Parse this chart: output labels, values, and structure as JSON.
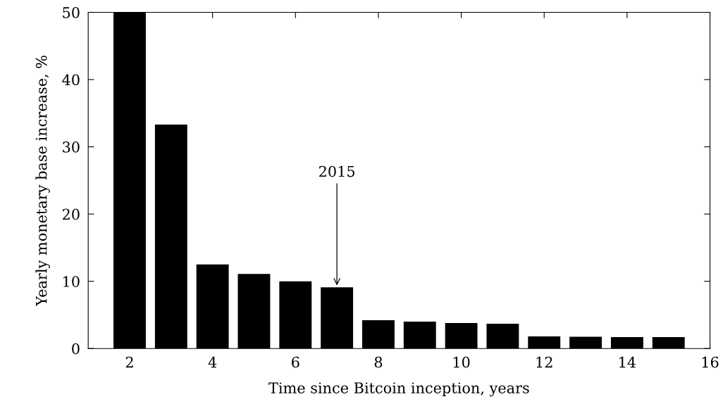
{
  "chart_data": {
    "type": "bar",
    "xlabel": "Time since Bitcoin inception, years",
    "ylabel": "Yearly monetary base increase, %",
    "x": [
      2,
      3,
      4,
      5,
      6,
      7,
      8,
      9,
      10,
      11,
      12,
      13,
      14,
      15
    ],
    "values": [
      50,
      33.3,
      12.5,
      11.1,
      10,
      9.1,
      4.2,
      4.0,
      3.8,
      3.7,
      1.8,
      1.75,
      1.7,
      1.7
    ],
    "color": "#000000",
    "xlim": [
      1,
      16
    ],
    "xticks": [
      2,
      4,
      6,
      8,
      10,
      12,
      14,
      16
    ],
    "ylim": [
      0,
      50
    ],
    "yticks": [
      0,
      10,
      20,
      30,
      40,
      50
    ],
    "grid": false,
    "annotations": [
      {
        "text": "2015",
        "x": 7,
        "y": 9.1
      }
    ]
  }
}
